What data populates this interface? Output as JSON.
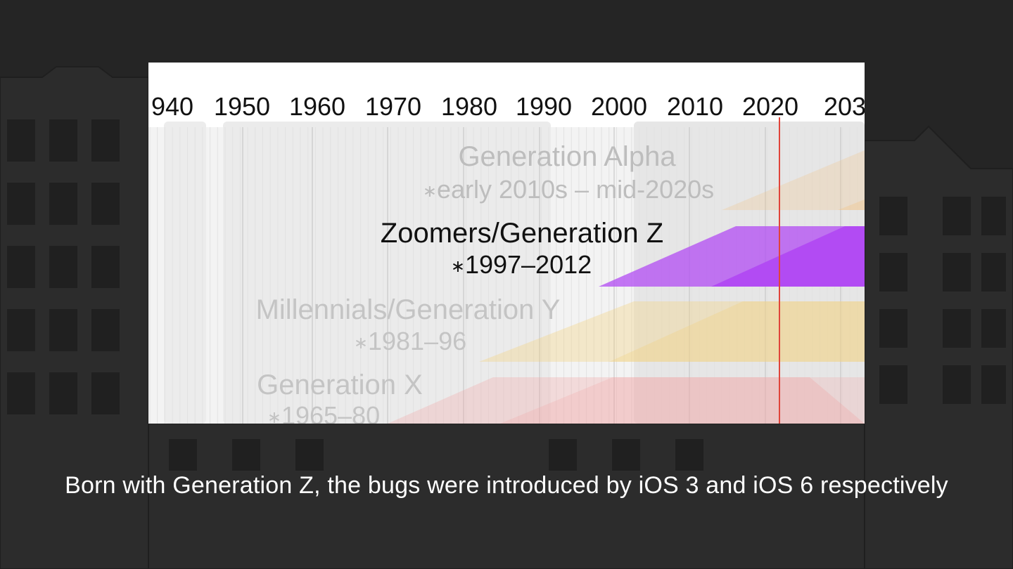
{
  "years": [
    "940",
    "1950",
    "1960",
    "1970",
    "1980",
    "1990",
    "2000",
    "2010",
    "2020",
    "203"
  ],
  "current_year_line": "2022",
  "generations": [
    {
      "id": "alpha",
      "name": "Generation Alpha",
      "range": "early 2010s – mid-2020s",
      "highlighted": false,
      "color": "#f5c07a"
    },
    {
      "id": "z",
      "name": "Zoomers/Generation Z",
      "range": "1997–2012",
      "highlighted": true,
      "color": "#b24bf3"
    },
    {
      "id": "y",
      "name": "Millennials/Generation Y",
      "range": "1981–96",
      "highlighted": false,
      "color": "#f3d27a"
    },
    {
      "id": "x",
      "name": "Generation X",
      "range": "1965–80",
      "highlighted": false,
      "color": "#f3a3a3"
    }
  ],
  "birth_symbol": "∗",
  "caption": "Born with Generation Z, the bugs were introduced by iOS 3 and iOS 6 respectively",
  "colors": {
    "background": "#252525",
    "accent_line": "#e0443a",
    "highlight": "#b24bf3"
  }
}
